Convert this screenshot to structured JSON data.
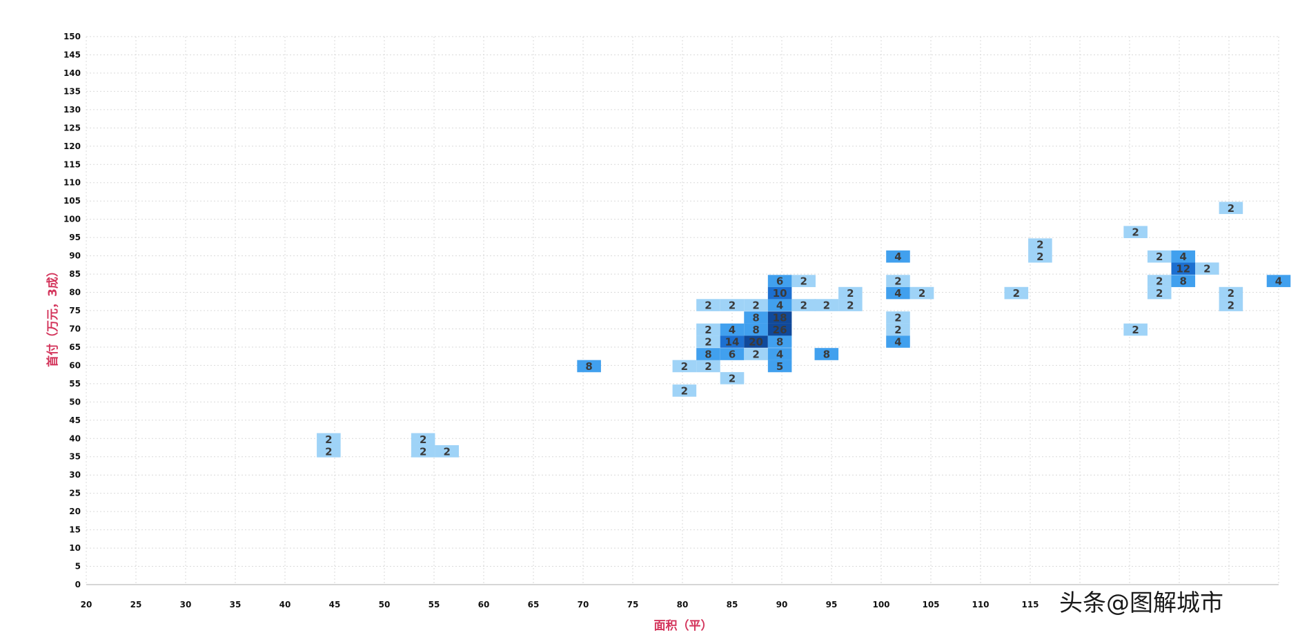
{
  "chart_data": {
    "type": "heatmap",
    "title": "",
    "xlabel": "面积（平）",
    "ylabel": "首付（万元，3成）",
    "xlim": [
      20,
      140
    ],
    "ylim": [
      0,
      150
    ],
    "x_ticks": [
      20,
      25,
      30,
      35,
      40,
      45,
      50,
      55,
      60,
      65,
      70,
      75,
      80,
      85,
      90,
      95,
      100,
      105,
      110,
      115,
      120,
      125,
      130,
      135,
      140
    ],
    "y_ticks": [
      0,
      5,
      10,
      15,
      20,
      25,
      30,
      35,
      40,
      45,
      50,
      55,
      60,
      65,
      70,
      75,
      80,
      85,
      90,
      95,
      100,
      105,
      110,
      115,
      120,
      125,
      130,
      135,
      140,
      145,
      150
    ],
    "x_tick_labels": [
      "20",
      "25",
      "30",
      "35",
      "40",
      "45",
      "50",
      "55",
      "60",
      "65",
      "70",
      "75",
      "80",
      "85",
      "90",
      "95",
      "100",
      "105",
      "110",
      "115",
      "",
      "",
      "",
      "",
      ""
    ],
    "y_tick_labels": [
      "0",
      "5",
      "10",
      "15",
      "20",
      "25",
      "30",
      "35",
      "40",
      "45",
      "50",
      "55",
      "60",
      "65",
      "70",
      "75",
      "80",
      "85",
      "90",
      "95",
      "100",
      "105",
      "110",
      "115",
      "120",
      "125",
      "130",
      "135",
      "140",
      "145",
      "150"
    ],
    "cell_size": {
      "x": 2.4,
      "y": 3.33
    },
    "grid": true,
    "cells": [
      {
        "x": 44.4,
        "y": 36.5,
        "value": 2
      },
      {
        "x": 44.4,
        "y": 39.8,
        "value": 2
      },
      {
        "x": 53.9,
        "y": 36.5,
        "value": 2
      },
      {
        "x": 53.9,
        "y": 39.8,
        "value": 2
      },
      {
        "x": 56.3,
        "y": 36.5,
        "value": 2
      },
      {
        "x": 70.6,
        "y": 59.8,
        "value": 8
      },
      {
        "x": 80.2,
        "y": 53.1,
        "value": 2
      },
      {
        "x": 80.2,
        "y": 59.8,
        "value": 2
      },
      {
        "x": 82.6,
        "y": 59.8,
        "value": 2
      },
      {
        "x": 82.6,
        "y": 63.1,
        "value": 8
      },
      {
        "x": 82.6,
        "y": 66.5,
        "value": 2
      },
      {
        "x": 82.6,
        "y": 69.8,
        "value": 2
      },
      {
        "x": 82.6,
        "y": 76.5,
        "value": 2
      },
      {
        "x": 85.0,
        "y": 56.5,
        "value": 2
      },
      {
        "x": 85.0,
        "y": 63.1,
        "value": 6
      },
      {
        "x": 85.0,
        "y": 66.5,
        "value": 14
      },
      {
        "x": 85.0,
        "y": 69.8,
        "value": 4
      },
      {
        "x": 85.0,
        "y": 76.5,
        "value": 2
      },
      {
        "x": 87.4,
        "y": 63.1,
        "value": 2
      },
      {
        "x": 87.4,
        "y": 66.5,
        "value": 20
      },
      {
        "x": 87.4,
        "y": 69.8,
        "value": 8
      },
      {
        "x": 87.4,
        "y": 73.1,
        "value": 8
      },
      {
        "x": 87.4,
        "y": 76.5,
        "value": 2
      },
      {
        "x": 89.8,
        "y": 59.8,
        "value": 5
      },
      {
        "x": 89.8,
        "y": 63.1,
        "value": 4
      },
      {
        "x": 89.8,
        "y": 66.5,
        "value": 8
      },
      {
        "x": 89.8,
        "y": 69.8,
        "value": 26
      },
      {
        "x": 89.8,
        "y": 73.1,
        "value": 18
      },
      {
        "x": 89.8,
        "y": 76.5,
        "value": 4
      },
      {
        "x": 89.8,
        "y": 79.8,
        "value": 10
      },
      {
        "x": 89.8,
        "y": 83.1,
        "value": 6
      },
      {
        "x": 92.2,
        "y": 76.5,
        "value": 2
      },
      {
        "x": 92.2,
        "y": 83.1,
        "value": 2
      },
      {
        "x": 94.5,
        "y": 63.1,
        "value": 8
      },
      {
        "x": 94.5,
        "y": 76.5,
        "value": 2
      },
      {
        "x": 96.9,
        "y": 76.5,
        "value": 2
      },
      {
        "x": 96.9,
        "y": 79.8,
        "value": 2
      },
      {
        "x": 101.7,
        "y": 66.5,
        "value": 4
      },
      {
        "x": 101.7,
        "y": 69.8,
        "value": 2
      },
      {
        "x": 101.7,
        "y": 73.1,
        "value": 2
      },
      {
        "x": 101.7,
        "y": 79.8,
        "value": 4
      },
      {
        "x": 101.7,
        "y": 83.1,
        "value": 2
      },
      {
        "x": 101.7,
        "y": 89.8,
        "value": 4
      },
      {
        "x": 104.1,
        "y": 79.8,
        "value": 2
      },
      {
        "x": 113.6,
        "y": 79.8,
        "value": 2
      },
      {
        "x": 116.0,
        "y": 89.8,
        "value": 2
      },
      {
        "x": 116.0,
        "y": 93.1,
        "value": 2
      },
      {
        "x": 125.6,
        "y": 69.8,
        "value": 2
      },
      {
        "x": 125.6,
        "y": 96.5,
        "value": 2
      },
      {
        "x": 128.0,
        "y": 79.8,
        "value": 2
      },
      {
        "x": 128.0,
        "y": 83.1,
        "value": 2
      },
      {
        "x": 128.0,
        "y": 89.8,
        "value": 2
      },
      {
        "x": 130.4,
        "y": 83.1,
        "value": 8
      },
      {
        "x": 130.4,
        "y": 86.5,
        "value": 12
      },
      {
        "x": 130.4,
        "y": 89.8,
        "value": 4
      },
      {
        "x": 132.8,
        "y": 86.5,
        "value": 2
      },
      {
        "x": 135.2,
        "y": 76.5,
        "value": 2
      },
      {
        "x": 135.2,
        "y": 79.8,
        "value": 2
      },
      {
        "x": 135.2,
        "y": 103.1,
        "value": 2
      },
      {
        "x": 140.0,
        "y": 83.1,
        "value": 4
      }
    ],
    "color_scale": {
      "low": "#9fd3f7",
      "mid": "#41a0ee",
      "high": "#1c6fd0",
      "max": "#10499a"
    }
  },
  "colors": {
    "axis_title": "#d3345b",
    "grid": "#d9d9d9",
    "tick": "#111111"
  },
  "watermark": "头条@图解城市"
}
